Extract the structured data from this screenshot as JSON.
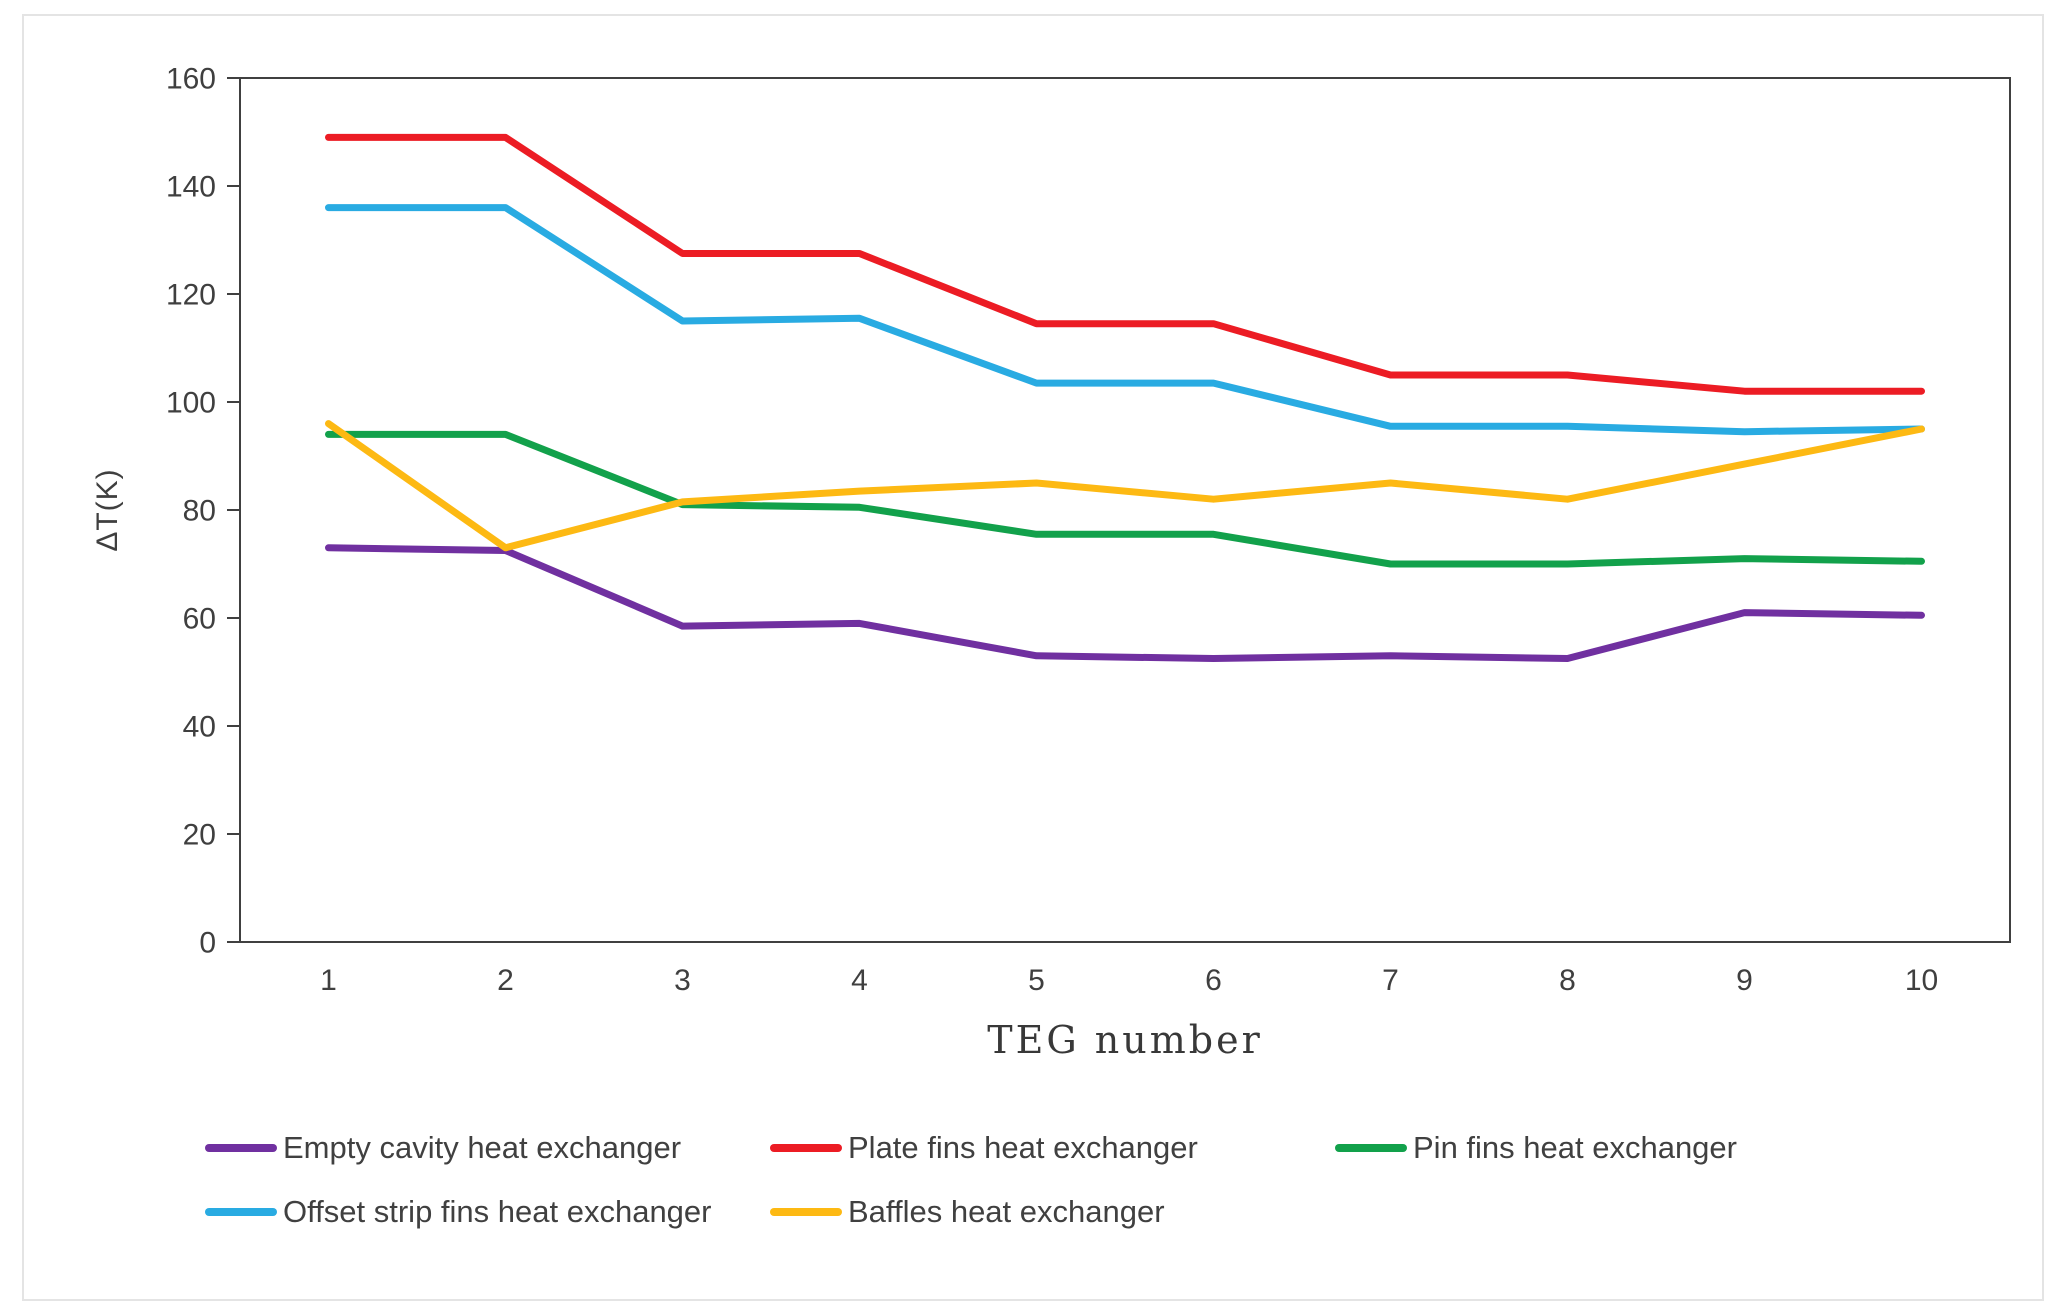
{
  "chart_data": {
    "type": "line",
    "title": "",
    "xlabel": "TEG number",
    "ylabel": "ΔT(K)",
    "x": [
      1,
      2,
      3,
      4,
      5,
      6,
      7,
      8,
      9,
      10
    ],
    "ylim": [
      0,
      160
    ],
    "ytick_step": 20,
    "grid": false,
    "legend_position": "bottom",
    "axis_color": "#404040",
    "series": [
      {
        "name": "Empty cavity heat exchanger",
        "color": "#7030A0",
        "values": [
          73,
          72.5,
          58.5,
          59,
          53,
          52.5,
          53,
          52.5,
          61,
          60.5
        ]
      },
      {
        "name": "Plate fins heat exchanger",
        "color": "#EC1C24",
        "values": [
          149,
          149,
          127.5,
          127.5,
          114.5,
          114.5,
          105,
          105,
          102,
          102
        ]
      },
      {
        "name": "Pin fins heat exchanger",
        "color": "#12A14B",
        "values": [
          94,
          94,
          81,
          80.5,
          75.5,
          75.5,
          70,
          70,
          71,
          70.5
        ]
      },
      {
        "name": "Offset strip fins heat exchanger",
        "color": "#29ABE2",
        "values": [
          136,
          136,
          115,
          115.5,
          103.5,
          103.5,
          95.5,
          95.5,
          94.5,
          95
        ]
      },
      {
        "name": "Baffles heat exchanger",
        "color": "#FDB913",
        "values": [
          96,
          73,
          81.5,
          83.5,
          85,
          82,
          85,
          82,
          88.5,
          95
        ]
      }
    ]
  }
}
